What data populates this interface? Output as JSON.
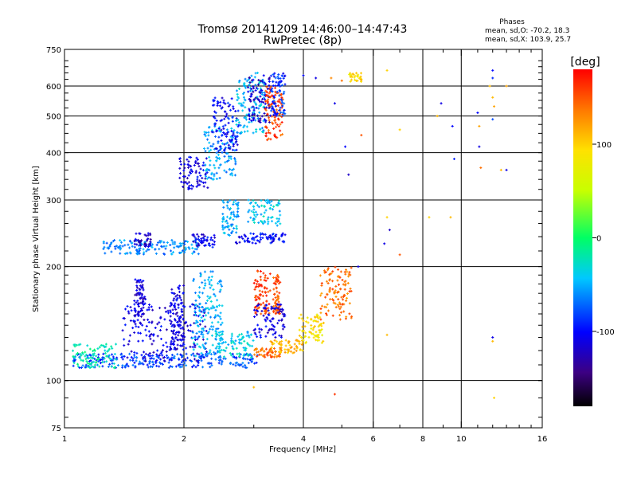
{
  "chart_data": {
    "type": "scatter",
    "title": "Tromsø 20141209 14:46:00–14:47:43",
    "subtitle": "RwPretec (8p)",
    "xlabel": "Frequency [MHz]",
    "ylabel": "Stationary phase Virtual Height [km]",
    "x_scale": "log",
    "y_scale": "log",
    "xlim": [
      1,
      16
    ],
    "ylim": [
      75,
      750
    ],
    "x_ticks": [
      1,
      2,
      4,
      6,
      8,
      10,
      16
    ],
    "y_ticks": [
      75,
      100,
      200,
      300,
      400,
      500,
      600,
      750
    ],
    "grid": true,
    "stats": {
      "heading": "Phases",
      "line_o": "mean, sd,O: -70.2, 18.3",
      "line_x": "mean, sd,X: 103.9, 25.7"
    },
    "colorbar": {
      "label": "[deg]",
      "range": [
        -180,
        180
      ],
      "ticks": [
        100,
        0,
        -100
      ]
    },
    "clusters": [
      {
        "x": [
          1.05,
          3.1
        ],
        "y": [
          108,
          118
        ],
        "phase": -80
      },
      {
        "x": [
          1.05,
          1.35
        ],
        "y": [
          108,
          125
        ],
        "phase": -20
      },
      {
        "x": [
          1.4,
          2.3
        ],
        "y": [
          112,
          160
        ],
        "phase": -110
      },
      {
        "x": [
          1.5,
          1.6
        ],
        "y": [
          140,
          185
        ],
        "phase": -115
      },
      {
        "x": [
          1.85,
          2.0
        ],
        "y": [
          120,
          180
        ],
        "phase": -110
      },
      {
        "x": [
          2.1,
          2.5
        ],
        "y": [
          115,
          195
        ],
        "phase": -50
      },
      {
        "x": [
          2.4,
          3.0
        ],
        "y": [
          115,
          135
        ],
        "phase": -40
      },
      {
        "x": [
          3.0,
          3.5
        ],
        "y": [
          115,
          122
        ],
        "phase": 145
      },
      {
        "x": [
          3.3,
          4.0
        ],
        "y": [
          118,
          128
        ],
        "phase": 110
      },
      {
        "x": [
          3.9,
          4.5
        ],
        "y": [
          125,
          150
        ],
        "phase": 90
      },
      {
        "x": [
          4.4,
          5.3
        ],
        "y": [
          145,
          200
        ],
        "phase": 140
      },
      {
        "x": [
          3.0,
          3.3
        ],
        "y": [
          150,
          195
        ],
        "phase": 160
      },
      {
        "x": [
          3.35,
          3.5
        ],
        "y": [
          150,
          190
        ],
        "phase": 150
      },
      {
        "x": [
          3.0,
          3.6
        ],
        "y": [
          130,
          160
        ],
        "phase": -110
      },
      {
        "x": [
          1.25,
          2.2
        ],
        "y": [
          215,
          235
        ],
        "phase": -60
      },
      {
        "x": [
          1.5,
          1.65
        ],
        "y": [
          225,
          245
        ],
        "phase": -120
      },
      {
        "x": [
          2.1,
          2.4
        ],
        "y": [
          225,
          245
        ],
        "phase": -105
      },
      {
        "x": [
          2.7,
          3.6
        ],
        "y": [
          230,
          245
        ],
        "phase": -100
      },
      {
        "x": [
          2.9,
          3.5
        ],
        "y": [
          255,
          300
        ],
        "phase": -40
      },
      {
        "x": [
          2.5,
          2.75
        ],
        "y": [
          240,
          300
        ],
        "phase": -50
      },
      {
        "x": [
          1.95,
          2.3
        ],
        "y": [
          320,
          390
        ],
        "phase": -110
      },
      {
        "x": [
          2.25,
          2.7
        ],
        "y": [
          340,
          470
        ],
        "phase": -55
      },
      {
        "x": [
          2.35,
          2.75
        ],
        "y": [
          400,
          560
        ],
        "phase": -100
      },
      {
        "x": [
          2.7,
          3.2
        ],
        "y": [
          450,
          650
        ],
        "phase": -45
      },
      {
        "x": [
          2.9,
          3.3
        ],
        "y": [
          480,
          640
        ],
        "phase": -120
      },
      {
        "x": [
          3.2,
          3.55
        ],
        "y": [
          430,
          600
        ],
        "phase": 155
      },
      {
        "x": [
          3.3,
          3.6
        ],
        "y": [
          500,
          650
        ],
        "phase": -90
      },
      {
        "x": [
          5.2,
          5.6
        ],
        "y": [
          615,
          650
        ],
        "phase": 95
      }
    ],
    "scattered_points": [
      {
        "x": 4.7,
        "y": 630,
        "phase": 130
      },
      {
        "x": 4.8,
        "y": 540,
        "phase": -110
      },
      {
        "x": 5.1,
        "y": 415,
        "phase": -100
      },
      {
        "x": 5.2,
        "y": 350,
        "phase": -120
      },
      {
        "x": 5.6,
        "y": 445,
        "phase": 150
      },
      {
        "x": 6.5,
        "y": 660,
        "phase": 100
      },
      {
        "x": 7.0,
        "y": 460,
        "phase": 100
      },
      {
        "x": 6.5,
        "y": 270,
        "phase": 100
      },
      {
        "x": 6.6,
        "y": 250,
        "phase": -120
      },
      {
        "x": 6.4,
        "y": 230,
        "phase": -110
      },
      {
        "x": 7.0,
        "y": 215,
        "phase": 150
      },
      {
        "x": 6.5,
        "y": 132,
        "phase": 110
      },
      {
        "x": 8.3,
        "y": 270,
        "phase": 100
      },
      {
        "x": 8.7,
        "y": 500,
        "phase": 110
      },
      {
        "x": 8.9,
        "y": 540,
        "phase": -110
      },
      {
        "x": 9.4,
        "y": 270,
        "phase": 110
      },
      {
        "x": 9.5,
        "y": 470,
        "phase": -100
      },
      {
        "x": 9.6,
        "y": 385,
        "phase": -90
      },
      {
        "x": 11.0,
        "y": 510,
        "phase": -100
      },
      {
        "x": 11.1,
        "y": 470,
        "phase": 120
      },
      {
        "x": 11.2,
        "y": 365,
        "phase": 140
      },
      {
        "x": 11.1,
        "y": 415,
        "phase": -110
      },
      {
        "x": 11.8,
        "y": 600,
        "phase": 110
      },
      {
        "x": 12.0,
        "y": 660,
        "phase": -100
      },
      {
        "x": 12.0,
        "y": 630,
        "phase": -90
      },
      {
        "x": 12.0,
        "y": 560,
        "phase": 110
      },
      {
        "x": 12.1,
        "y": 530,
        "phase": 120
      },
      {
        "x": 12.0,
        "y": 490,
        "phase": -80
      },
      {
        "x": 12.6,
        "y": 360,
        "phase": 110
      },
      {
        "x": 13.0,
        "y": 360,
        "phase": -110
      },
      {
        "x": 13.0,
        "y": 600,
        "phase": 120
      },
      {
        "x": 12.0,
        "y": 130,
        "phase": -110
      },
      {
        "x": 12.0,
        "y": 127,
        "phase": 110
      },
      {
        "x": 12.1,
        "y": 90,
        "phase": 100
      },
      {
        "x": 4.8,
        "y": 92,
        "phase": 160
      },
      {
        "x": 3.0,
        "y": 96,
        "phase": 110
      },
      {
        "x": 4.3,
        "y": 630,
        "phase": -110
      },
      {
        "x": 4.0,
        "y": 640,
        "phase": -100
      },
      {
        "x": 5.5,
        "y": 200,
        "phase": -110
      },
      {
        "x": 5.0,
        "y": 620,
        "phase": 140
      }
    ]
  }
}
